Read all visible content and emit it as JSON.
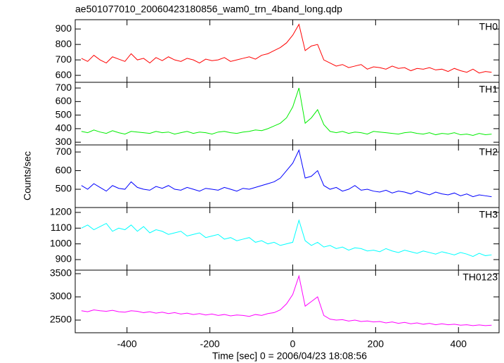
{
  "title": "ae501077010_20060423180856_wam0_trn_4band_long.qdp",
  "x_label": "Time [sec] 0 = 2006/04/23 18:08:56",
  "y_label": "Counts/sec",
  "xlim": [
    -525,
    498
  ],
  "xticks": [
    -400,
    -200,
    0,
    200,
    400
  ],
  "x": [
    -510,
    -495,
    -480,
    -465,
    -450,
    -435,
    -420,
    -405,
    -390,
    -375,
    -360,
    -345,
    -330,
    -315,
    -300,
    -285,
    -270,
    -255,
    -240,
    -225,
    -210,
    -195,
    -180,
    -165,
    -150,
    -135,
    -120,
    -105,
    -90,
    -75,
    -60,
    -45,
    -30,
    -15,
    0,
    15,
    30,
    45,
    60,
    75,
    90,
    105,
    120,
    135,
    150,
    165,
    180,
    195,
    210,
    225,
    240,
    255,
    270,
    285,
    300,
    315,
    330,
    345,
    360,
    375,
    390,
    405,
    420,
    435,
    450,
    465,
    480
  ],
  "chart_data": [
    {
      "type": "line",
      "ylim": [
        555,
        960
      ],
      "yticks": [
        600,
        700,
        800,
        900
      ],
      "series": [
        {
          "name": "TH0",
          "color": "#ff0000",
          "values": [
            710,
            690,
            730,
            700,
            680,
            720,
            705,
            690,
            740,
            700,
            710,
            680,
            715,
            695,
            720,
            700,
            690,
            710,
            700,
            680,
            705,
            695,
            700,
            715,
            690,
            700,
            710,
            720,
            705,
            730,
            740,
            760,
            780,
            810,
            860,
            930,
            760,
            790,
            800,
            700,
            680,
            660,
            670,
            650,
            660,
            670,
            640,
            655,
            650,
            640,
            660,
            645,
            650,
            630,
            645,
            640,
            650,
            635,
            640,
            625,
            645,
            630,
            620,
            640,
            615,
            625,
            620
          ]
        }
      ]
    },
    {
      "type": "line",
      "ylim": [
        280,
        742
      ],
      "yticks": [
        300,
        400,
        500,
        600,
        700
      ],
      "series": [
        {
          "name": "TH1",
          "color": "#00ee00",
          "values": [
            380,
            370,
            390,
            375,
            365,
            385,
            370,
            360,
            380,
            375,
            370,
            365,
            380,
            370,
            375,
            360,
            370,
            380,
            365,
            375,
            370,
            360,
            375,
            380,
            370,
            365,
            375,
            380,
            390,
            385,
            400,
            420,
            440,
            480,
            560,
            700,
            440,
            480,
            540,
            430,
            380,
            370,
            380,
            365,
            375,
            370,
            360,
            380,
            375,
            370,
            365,
            360,
            370,
            375,
            365,
            360,
            370,
            355,
            365,
            360,
            370,
            355,
            360,
            350,
            365,
            355,
            360
          ]
        }
      ]
    },
    {
      "type": "line",
      "ylim": [
        402,
        738
      ],
      "yticks": [
        500,
        600,
        700
      ],
      "series": [
        {
          "name": "TH2",
          "color": "#0000ff",
          "values": [
            520,
            500,
            530,
            510,
            490,
            520,
            505,
            500,
            540,
            510,
            500,
            495,
            515,
            505,
            520,
            500,
            495,
            510,
            500,
            490,
            505,
            500,
            495,
            510,
            500,
            490,
            505,
            500,
            510,
            520,
            530,
            540,
            560,
            600,
            640,
            710,
            560,
            570,
            600,
            520,
            500,
            510,
            490,
            500,
            520,
            495,
            500,
            490,
            485,
            495,
            480,
            490,
            485,
            475,
            490,
            480,
            470,
            485,
            475,
            470,
            480,
            465,
            475,
            460,
            470,
            465,
            460
          ]
        }
      ]
    },
    {
      "type": "line",
      "ylim": [
        833,
        1231
      ],
      "yticks": [
        900,
        1000,
        1100,
        1200
      ],
      "series": [
        {
          "name": "TH3",
          "color": "#00ffff",
          "values": [
            1100,
            1120,
            1090,
            1110,
            1130,
            1080,
            1100,
            1090,
            1120,
            1080,
            1110,
            1070,
            1090,
            1080,
            1060,
            1070,
            1080,
            1050,
            1060,
            1070,
            1040,
            1050,
            1060,
            1030,
            1040,
            1020,
            1030,
            1040,
            1010,
            1020,
            1000,
            1010,
            990,
            1000,
            1010,
            1150,
            1020,
            990,
            1010,
            980,
            990,
            970,
            980,
            960,
            975,
            970,
            955,
            960,
            950,
            970,
            955,
            945,
            960,
            950,
            940,
            955,
            945,
            935,
            950,
            940,
            930,
            945,
            935,
            920,
            940,
            925,
            930
          ]
        }
      ]
    },
    {
      "type": "line",
      "ylim": [
        2227,
        3576
      ],
      "yticks": [
        2500,
        3000,
        3500
      ],
      "series": [
        {
          "name": "TH0123",
          "color": "#ff00ff",
          "values": [
            2700,
            2680,
            2720,
            2700,
            2690,
            2710,
            2680,
            2670,
            2700,
            2690,
            2660,
            2680,
            2650,
            2670,
            2640,
            2660,
            2630,
            2650,
            2620,
            2640,
            2610,
            2630,
            2600,
            2620,
            2590,
            2610,
            2600,
            2580,
            2620,
            2600,
            2640,
            2660,
            2720,
            2850,
            3050,
            3450,
            2800,
            2900,
            3000,
            2600,
            2520,
            2500,
            2510,
            2480,
            2500,
            2470,
            2480,
            2460,
            2470,
            2440,
            2460,
            2430,
            2450,
            2420,
            2440,
            2410,
            2430,
            2400,
            2420,
            2400,
            2410,
            2390,
            2400,
            2380,
            2395,
            2380,
            2390
          ]
        }
      ]
    }
  ]
}
